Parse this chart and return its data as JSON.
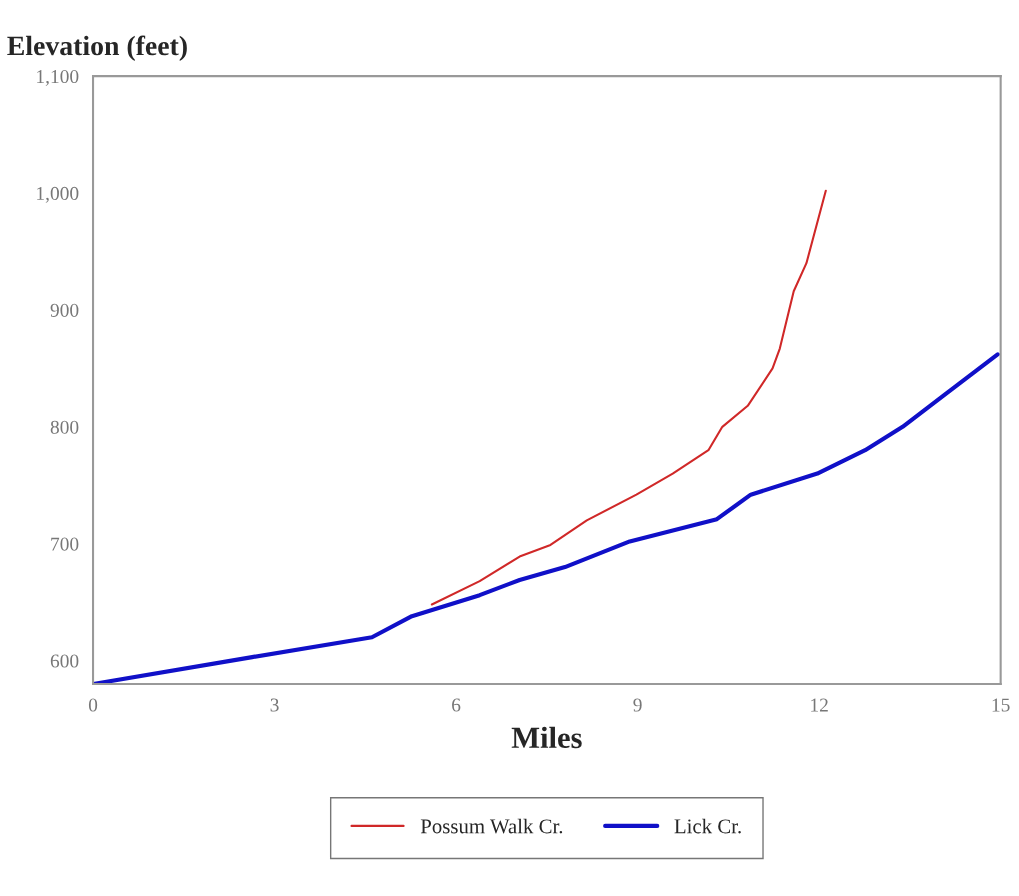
{
  "chart_data": {
    "type": "line",
    "xlabel": "Miles",
    "ylabel": "Elevation (feet)",
    "xlim": [
      0,
      15
    ],
    "xticks": [
      0,
      3,
      6,
      9,
      12,
      15
    ],
    "ylim": [
      580,
      1100
    ],
    "yticks": [
      600,
      700,
      800,
      900,
      {
        "value": 1000,
        "label": "1,000"
      },
      {
        "value": 1100,
        "label": "1,100"
      }
    ],
    "grid": false,
    "legend": "bottom",
    "line_style": "solid",
    "marker": "none",
    "series": [
      {
        "name": "Possum Walk Cr.",
        "color": "#d02828",
        "x": [
          5.6,
          6.39,
          7.05,
          7.56,
          8.16,
          8.98,
          9.58,
          10.17,
          10.4,
          10.82,
          11.23,
          11.35,
          11.58,
          11.79,
          12.11
        ],
        "values": [
          648,
          668,
          689,
          699,
          720,
          742,
          760,
          780,
          800,
          818,
          850,
          867,
          916,
          940,
          1002
        ]
      },
      {
        "name": "Lick Cr.",
        "color": "#1010c8",
        "x": [
          0,
          2.63,
          4.61,
          5.27,
          6.39,
          7.05,
          7.8,
          8.87,
          10.31,
          10.87,
          11.97,
          12.76,
          13.38,
          14.06,
          14.95
        ],
        "values": [
          580,
          603,
          620,
          638,
          656,
          669,
          680,
          702,
          721,
          742,
          760,
          780,
          800,
          827,
          862
        ]
      }
    ]
  }
}
